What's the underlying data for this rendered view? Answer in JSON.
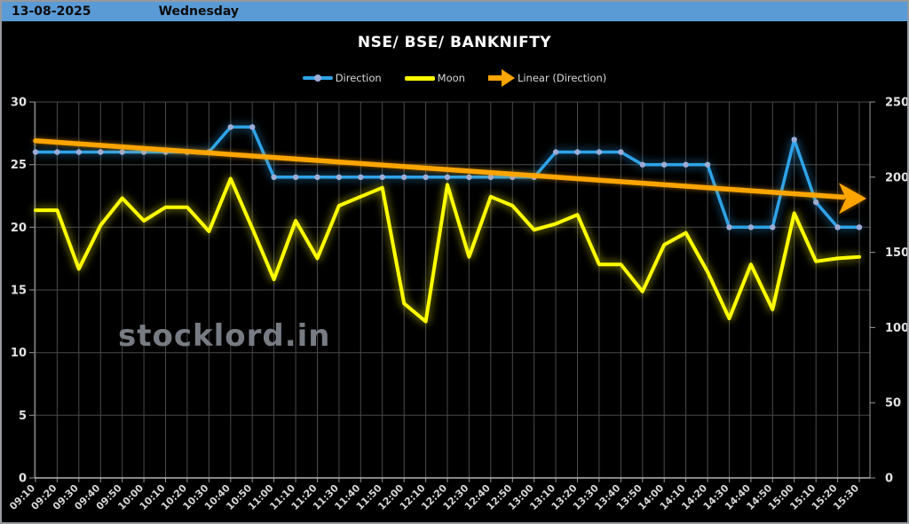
{
  "header": {
    "date": "13-08-2025",
    "weekday": "Wednesday"
  },
  "title": "NSE/ BSE/ BANKNIFTY",
  "watermark": "stocklord.in",
  "legend": [
    {
      "label": "Direction",
      "swatch": "line-with-marker"
    },
    {
      "label": "Moon",
      "swatch": "line"
    },
    {
      "label": "Linear (Direction)",
      "swatch": "arrow"
    }
  ],
  "colors": {
    "background": "#000000",
    "header_bar": "#5B9BD5",
    "direction": "#2FA3E8",
    "direction_marker": "#9DACD6",
    "moon": "#FFFF00",
    "trend": "#FFA500",
    "grid": "#4A4A4A",
    "axis": "#9A9A9A",
    "tick_text": "#E3E3E3",
    "watermark": "#7E838B"
  },
  "chart_data": {
    "type": "line",
    "title": "NSE/ BSE/ BANKNIFTY",
    "grid": true,
    "legend_position": "top",
    "x_labels": [
      "09:10",
      "09:20",
      "09:30",
      "09:40",
      "09:50",
      "10:00",
      "10:10",
      "10:20",
      "10:30",
      "10:40",
      "10:50",
      "11:00",
      "11:10",
      "11:20",
      "11:30",
      "11:40",
      "11:50",
      "12:00",
      "12:10",
      "12:20",
      "12:30",
      "12:40",
      "12:50",
      "13:00",
      "13:10",
      "13:20",
      "13:30",
      "13:40",
      "13:50",
      "14:00",
      "14:10",
      "14:20",
      "14:30",
      "14:40",
      "14:50",
      "15:00",
      "15:10",
      "15:20",
      "15:30"
    ],
    "axes": {
      "left": {
        "min": 0,
        "max": 30,
        "ticks": [
          0,
          5,
          10,
          15,
          20,
          25,
          30
        ]
      },
      "right": {
        "min": 0,
        "max": 250,
        "ticks": [
          0,
          50,
          100,
          150,
          200,
          250
        ]
      }
    },
    "series": [
      {
        "name": "Direction",
        "axis": "left",
        "style": "line-with-markers",
        "values": [
          26,
          26,
          26,
          26,
          26,
          26,
          26,
          26,
          26,
          28,
          28,
          24,
          24,
          24,
          24,
          24,
          24,
          24,
          24,
          24,
          24,
          24,
          24,
          24,
          26,
          26,
          26,
          26,
          25,
          25,
          25,
          25,
          20,
          20,
          20,
          27,
          22,
          20,
          20
        ]
      },
      {
        "name": "Moon",
        "axis": "right",
        "style": "line",
        "values": [
          178,
          178,
          139,
          168,
          186,
          171,
          180,
          180,
          164,
          199,
          166,
          132,
          171,
          146,
          181,
          187,
          193,
          116,
          104,
          195,
          147,
          187,
          181,
          165,
          169,
          175,
          142,
          142,
          124,
          155,
          163,
          137,
          106,
          142,
          112,
          176,
          144,
          146,
          147
        ]
      },
      {
        "name": "Linear (Direction)",
        "axis": "left",
        "style": "trendline-arrow",
        "trend_start": 26.9,
        "trend_end": 22.4
      }
    ]
  }
}
